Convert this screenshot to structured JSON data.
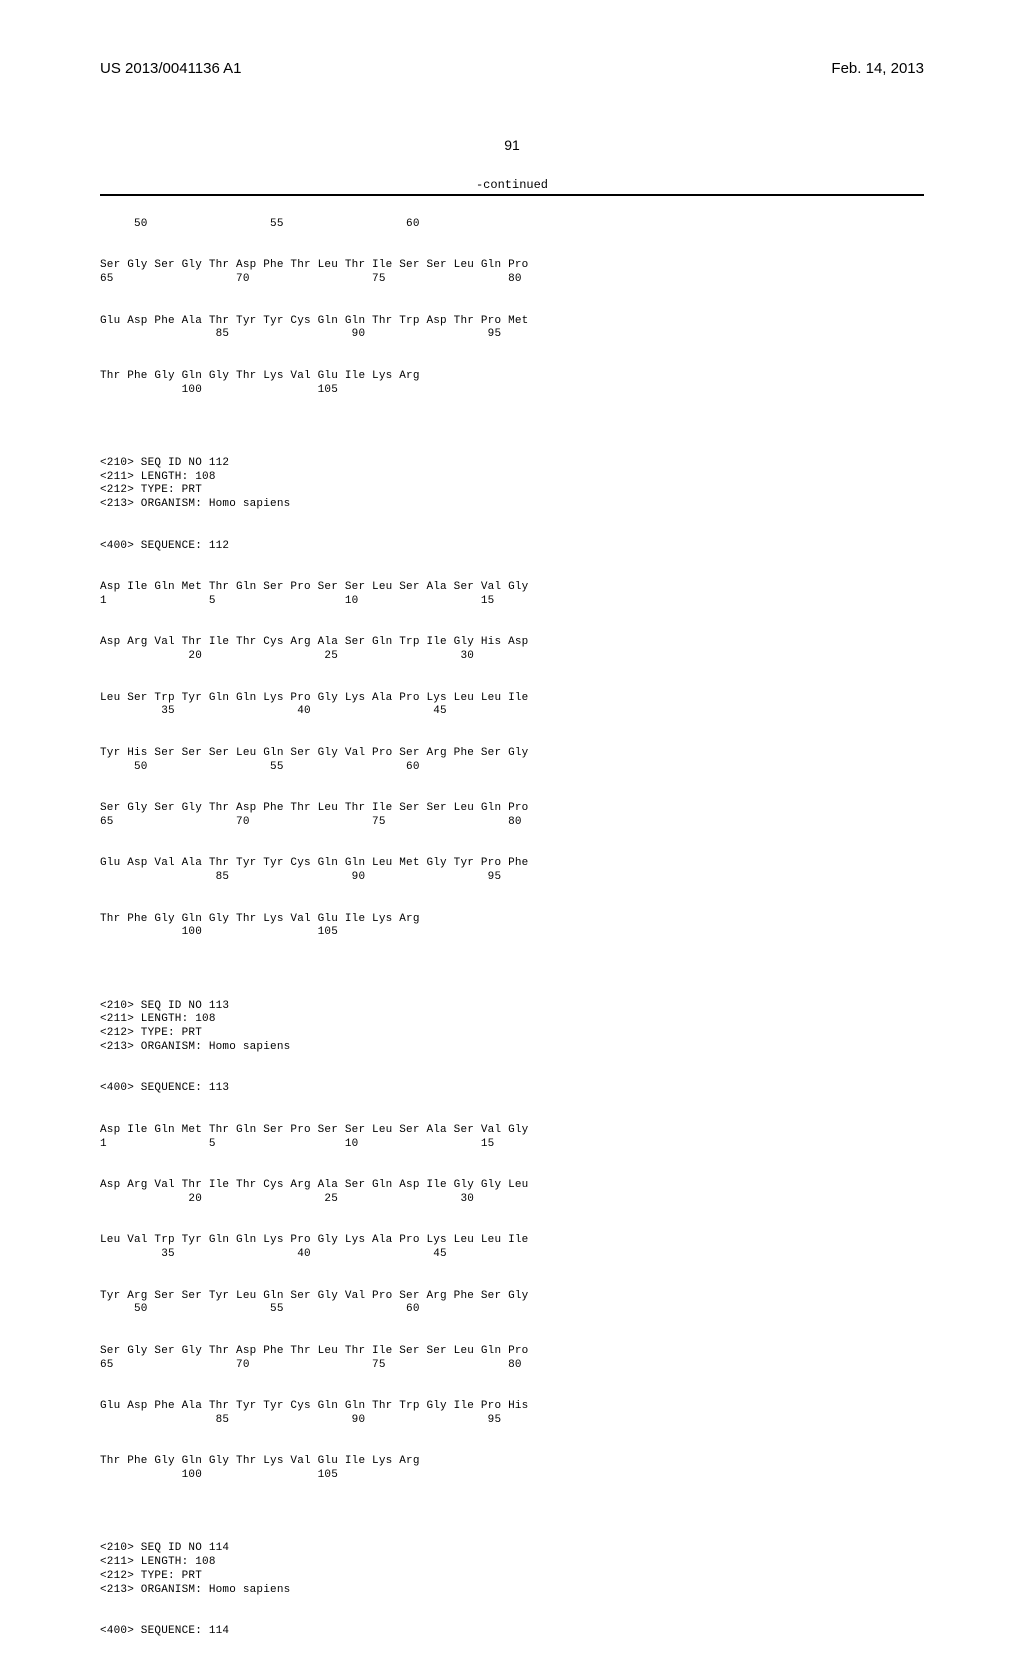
{
  "header": {
    "pub_number": "US 2013/0041136 A1",
    "date": "Feb. 14, 2013"
  },
  "page_number": "91",
  "continued_label": "-continued",
  "seq_partial": {
    "pos_row1": "     50                  55                  60",
    "rows": [
      {
        "aa": "Ser Gly Ser Gly Thr Asp Phe Thr Leu Thr Ile Ser Ser Leu Gln Pro",
        "pos": "65                  70                  75                  80"
      },
      {
        "aa": "Glu Asp Phe Ala Thr Tyr Tyr Cys Gln Gln Thr Trp Asp Thr Pro Met",
        "pos": "                 85                  90                  95"
      },
      {
        "aa": "Thr Phe Gly Gln Gly Thr Lys Val Glu Ile Lys Arg",
        "pos": "            100                 105"
      }
    ]
  },
  "seq112": {
    "meta": {
      "id": "<210> SEQ ID NO 112",
      "len": "<211> LENGTH: 108",
      "type": "<212> TYPE: PRT",
      "org": "<213> ORGANISM: Homo sapiens"
    },
    "seq_label": "<400> SEQUENCE: 112",
    "rows": [
      {
        "aa": "Asp Ile Gln Met Thr Gln Ser Pro Ser Ser Leu Ser Ala Ser Val Gly",
        "pos": "1               5                   10                  15"
      },
      {
        "aa": "Asp Arg Val Thr Ile Thr Cys Arg Ala Ser Gln Trp Ile Gly His Asp",
        "pos": "             20                  25                  30"
      },
      {
        "aa": "Leu Ser Trp Tyr Gln Gln Lys Pro Gly Lys Ala Pro Lys Leu Leu Ile",
        "pos": "         35                  40                  45"
      },
      {
        "aa": "Tyr His Ser Ser Ser Leu Gln Ser Gly Val Pro Ser Arg Phe Ser Gly",
        "pos": "     50                  55                  60"
      },
      {
        "aa": "Ser Gly Ser Gly Thr Asp Phe Thr Leu Thr Ile Ser Ser Leu Gln Pro",
        "pos": "65                  70                  75                  80"
      },
      {
        "aa": "Glu Asp Val Ala Thr Tyr Tyr Cys Gln Gln Leu Met Gly Tyr Pro Phe",
        "pos": "                 85                  90                  95"
      },
      {
        "aa": "Thr Phe Gly Gln Gly Thr Lys Val Glu Ile Lys Arg",
        "pos": "            100                 105"
      }
    ]
  },
  "seq113": {
    "meta": {
      "id": "<210> SEQ ID NO 113",
      "len": "<211> LENGTH: 108",
      "type": "<212> TYPE: PRT",
      "org": "<213> ORGANISM: Homo sapiens"
    },
    "seq_label": "<400> SEQUENCE: 113",
    "rows": [
      {
        "aa": "Asp Ile Gln Met Thr Gln Ser Pro Ser Ser Leu Ser Ala Ser Val Gly",
        "pos": "1               5                   10                  15"
      },
      {
        "aa": "Asp Arg Val Thr Ile Thr Cys Arg Ala Ser Gln Asp Ile Gly Gly Leu",
        "pos": "             20                  25                  30"
      },
      {
        "aa": "Leu Val Trp Tyr Gln Gln Lys Pro Gly Lys Ala Pro Lys Leu Leu Ile",
        "pos": "         35                  40                  45"
      },
      {
        "aa": "Tyr Arg Ser Ser Tyr Leu Gln Ser Gly Val Pro Ser Arg Phe Ser Gly",
        "pos": "     50                  55                  60"
      },
      {
        "aa": "Ser Gly Ser Gly Thr Asp Phe Thr Leu Thr Ile Ser Ser Leu Gln Pro",
        "pos": "65                  70                  75                  80"
      },
      {
        "aa": "Glu Asp Phe Ala Thr Tyr Tyr Cys Gln Gln Thr Trp Gly Ile Pro His",
        "pos": "                 85                  90                  95"
      },
      {
        "aa": "Thr Phe Gly Gln Gly Thr Lys Val Glu Ile Lys Arg",
        "pos": "            100                 105"
      }
    ]
  },
  "seq114": {
    "meta": {
      "id": "<210> SEQ ID NO 114",
      "len": "<211> LENGTH: 108",
      "type": "<212> TYPE: PRT",
      "org": "<213> ORGANISM: Homo sapiens"
    },
    "seq_label": "<400> SEQUENCE: 114"
  }
}
